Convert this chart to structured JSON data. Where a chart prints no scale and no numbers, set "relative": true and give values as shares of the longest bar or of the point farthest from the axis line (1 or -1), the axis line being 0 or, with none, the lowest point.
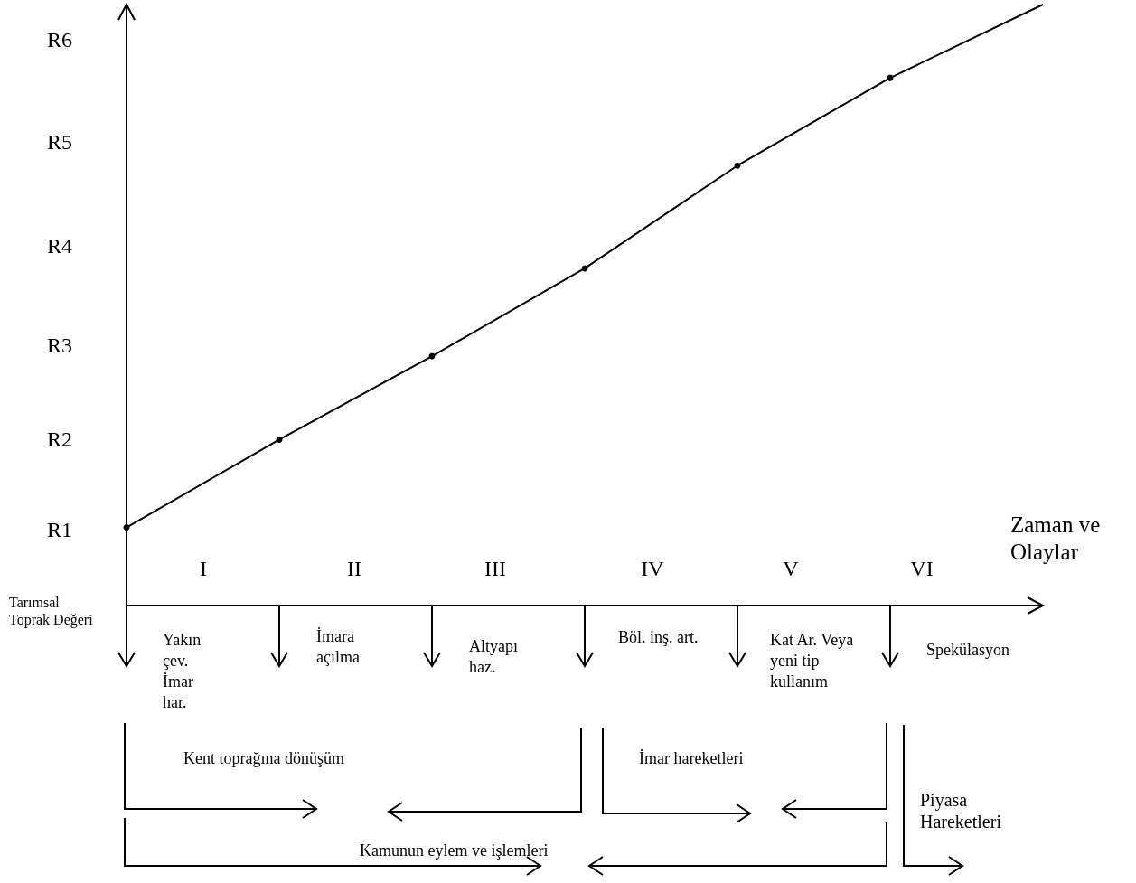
{
  "chart_data": {
    "type": "line",
    "xlabel": "Zaman ve Olaylar",
    "relative": true,
    "categories": [
      null,
      null,
      null,
      null,
      null,
      null,
      null
    ],
    "grid": false,
    "series": [
      {
        "color": "#000000",
        "values": [
          0.13,
          0.276,
          0.415,
          0.561,
          0.732,
          0.878,
          null
        ],
        "marker": "circle"
      },
      {
        "color": "#000000",
        "values": [
          null,
          null,
          null,
          null,
          null,
          0.878,
          1
        ],
        "marker": "none"
      }
    ],
    "annotations": [
      "R1",
      "R2",
      "R3",
      "R4",
      "R5",
      "R6",
      "I",
      "II",
      "III",
      "IV",
      "V",
      "VI",
      "Tarımsal Toprak Değeri",
      "Yakın çev. İmar har.",
      "İmara açılma",
      "Altyapı haz.",
      "Böl. inş. art.",
      "Kat Ar. Veya yeni tip kullanım",
      "Spekülasyon",
      "Kent toprağına dönüşüm",
      "İmar hareketleri",
      "Kamunun eylem ve işlemleri",
      "Piyasa Hareketleri"
    ]
  }
}
